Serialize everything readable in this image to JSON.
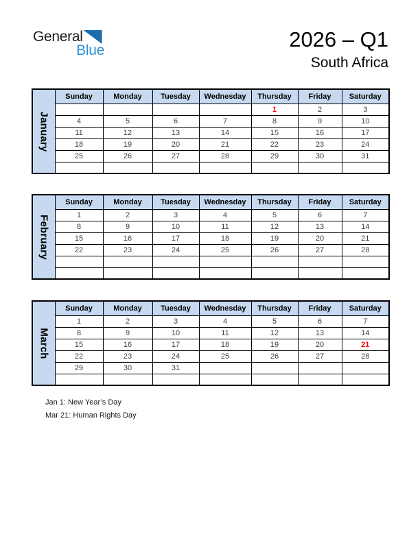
{
  "logo": {
    "text_general": "General",
    "text_blue": "Blue"
  },
  "header": {
    "title": "2026 – Q1",
    "subtitle": "South Africa"
  },
  "calendar": {
    "weekdays": [
      "Sunday",
      "Monday",
      "Tuesday",
      "Wednesday",
      "Thursday",
      "Friday",
      "Saturday"
    ],
    "months": [
      {
        "name": "January",
        "rows": [
          [
            "",
            "",
            "",
            "",
            "1",
            "2",
            "3"
          ],
          [
            "4",
            "5",
            "6",
            "7",
            "8",
            "9",
            "10"
          ],
          [
            "11",
            "12",
            "13",
            "14",
            "15",
            "16",
            "17"
          ],
          [
            "18",
            "19",
            "20",
            "21",
            "22",
            "23",
            "24"
          ],
          [
            "25",
            "26",
            "27",
            "28",
            "29",
            "30",
            "31"
          ],
          [
            "",
            "",
            "",
            "",
            "",
            "",
            ""
          ]
        ],
        "holiday_cells": [
          {
            "row": 0,
            "col": 4
          }
        ]
      },
      {
        "name": "February",
        "rows": [
          [
            "1",
            "2",
            "3",
            "4",
            "5",
            "6",
            "7"
          ],
          [
            "8",
            "9",
            "10",
            "11",
            "12",
            "13",
            "14"
          ],
          [
            "15",
            "16",
            "17",
            "18",
            "19",
            "20",
            "21"
          ],
          [
            "22",
            "23",
            "24",
            "25",
            "26",
            "27",
            "28"
          ],
          [
            "",
            "",
            "",
            "",
            "",
            "",
            ""
          ],
          [
            "",
            "",
            "",
            "",
            "",
            "",
            ""
          ]
        ],
        "holiday_cells": []
      },
      {
        "name": "March",
        "rows": [
          [
            "1",
            "2",
            "3",
            "4",
            "5",
            "6",
            "7"
          ],
          [
            "8",
            "9",
            "10",
            "11",
            "12",
            "13",
            "14"
          ],
          [
            "15",
            "16",
            "17",
            "18",
            "19",
            "20",
            "21"
          ],
          [
            "22",
            "23",
            "24",
            "25",
            "26",
            "27",
            "28"
          ],
          [
            "29",
            "30",
            "31",
            "",
            "",
            "",
            ""
          ],
          [
            "",
            "",
            "",
            "",
            "",
            "",
            ""
          ]
        ],
        "holiday_cells": [
          {
            "row": 2,
            "col": 6
          }
        ]
      }
    ]
  },
  "footnotes": [
    "Jan 1: New Year’s Day",
    "Mar 21: Human Rights Day"
  ],
  "colors": {
    "header_bg": "#c7d9f0",
    "border": "#000000",
    "date_text": "#404040",
    "holiday_text": "#ff0000",
    "logo_triangle": "#1c6cab",
    "logo_blue": "#2c8fd2"
  }
}
